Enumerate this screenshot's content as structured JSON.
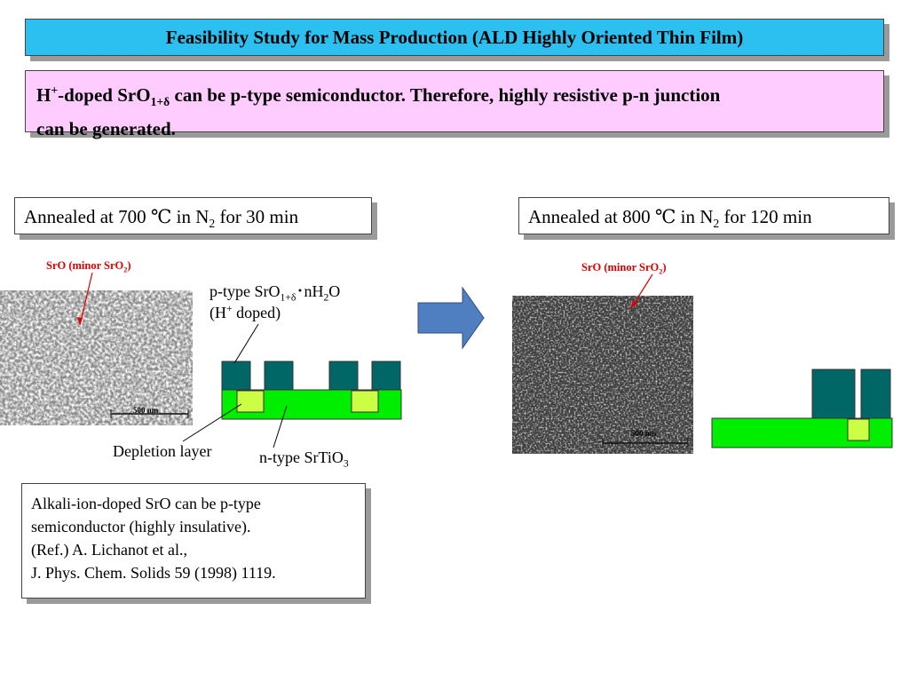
{
  "title": "Feasibility Study for Mass Production (ALD Highly Oriented Thin Film)",
  "statement": {
    "lead": "H",
    "lead_sup": "+",
    "part1": "-doped SrO",
    "part1_sub": "1+δ",
    "part2": " can be p-type semiconductor.  Therefore, highly resistive p-n junction",
    "line2": "can be generated."
  },
  "left_panel": {
    "anneal_a": "Annealed at 700 ℃ in N",
    "anneal_sub": "2",
    "anneal_b": " for 30 min",
    "sem_label_a": "SrO (minor SrO",
    "sem_label_sub": "2",
    "sem_label_b": ")",
    "scale_bar": "500 nm",
    "ptype_a": "p-type SrO",
    "ptype_sub1": "1+δ",
    "ptype_b": "･nH",
    "ptype_sub2": "2",
    "ptype_c": "O",
    "hplus_a": "(H",
    "hplus_sup": "+",
    "hplus_b": " doped)",
    "depletion": "Depletion layer",
    "ntype_a": "n-type SrTiO",
    "ntype_sub": "3"
  },
  "right_panel": {
    "anneal_a": "Annealed at 800 ℃ in N",
    "anneal_sub": "2",
    "anneal_b": " for 120 min",
    "sem_label_a": "SrO (minor SrO",
    "sem_label_sub": "2",
    "sem_label_b": ")",
    "scale_bar": "500 nm"
  },
  "note": {
    "lines": [
      "Alkali-ion-doped SrO can be p-type",
      "semiconductor (highly insulative).",
      "(Ref.) A. Lichanot et al.,",
      "J. Phys. Chem. Solids 59 (1998) 1119."
    ]
  },
  "colors": {
    "title_bg": "#2cc0f0",
    "statement_bg": "#ffccff",
    "p_type": "#006666",
    "n_type": "#00ee00",
    "depletion": "#ccff44",
    "arrow": "#4f7fc0",
    "label_red": "#e00000"
  }
}
